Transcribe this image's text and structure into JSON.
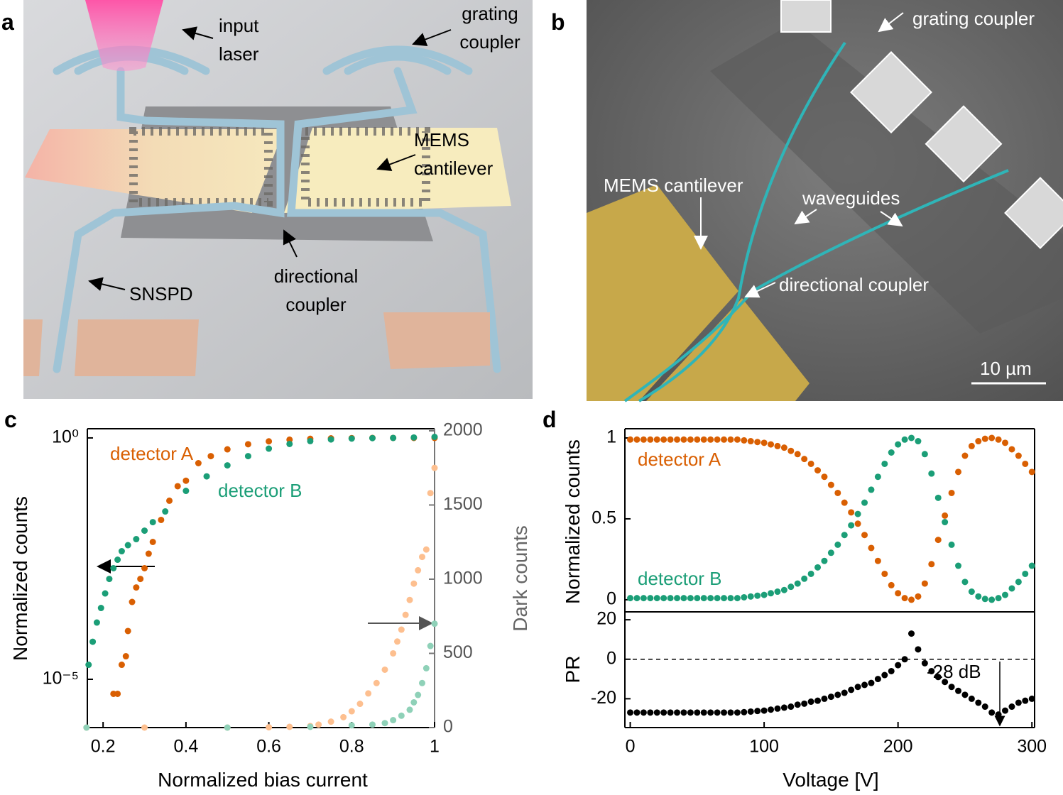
{
  "panels": [
    {
      "label": "a",
      "annotations": [
        [
          "input",
          "laser"
        ],
        [
          "grating",
          "coupler"
        ],
        [
          "MEMS",
          "cantilever"
        ],
        [
          "SNSPD"
        ],
        [
          "directional",
          "coupler"
        ]
      ]
    },
    {
      "label": "b",
      "annotations": [
        [
          "grating coupler"
        ],
        [
          "MEMS cantilever"
        ],
        [
          "waveguides"
        ],
        [
          "directional coupler"
        ],
        [
          "10 µm"
        ]
      ]
    }
  ],
  "chart_data": [
    {
      "type": "scatter",
      "label": "c",
      "xlabel": "Normalized bias current",
      "ylabel": "Normalized counts",
      "y2label": "Dark counts",
      "xlim": [
        0.162,
        1
      ],
      "xticks": [
        0.2,
        0.4,
        0.6,
        0.8,
        1
      ],
      "ylim": [
        1e-06,
        1.55
      ],
      "ylog": true,
      "yticks": [
        {
          "value": 1,
          "label": "10⁰"
        },
        {
          "value": 1e-05,
          "label": "10⁻⁵"
        }
      ],
      "y2lim": [
        0,
        2014
      ],
      "y2ticks": [
        0,
        500,
        1000,
        1500,
        2000
      ],
      "series": [
        {
          "name": "detector A",
          "color": "#d95f02",
          "x": [
            0.225,
            0.235,
            0.245,
            0.255,
            0.26,
            0.27,
            0.28,
            0.29,
            0.3,
            0.31,
            0.32,
            0.34,
            0.36,
            0.38,
            0.4,
            0.43,
            0.46,
            0.5,
            0.55,
            0.6,
            0.65,
            0.7,
            0.75,
            0.8,
            0.85,
            0.9,
            0.95,
            1
          ],
          "values": [
            5e-06,
            5e-06,
            2e-05,
            3e-05,
            0.0001,
            0.0004,
            0.0008,
            0.0012,
            0.002,
            0.004,
            0.007,
            0.02,
            0.05,
            0.1,
            0.13,
            0.3,
            0.42,
            0.58,
            0.74,
            0.85,
            0.92,
            0.96,
            0.98,
            0.99,
            1,
            1,
            1,
            1
          ]
        },
        {
          "name": "detector B",
          "color": "#1b9e77",
          "x": [
            0.165,
            0.175,
            0.185,
            0.195,
            0.205,
            0.215,
            0.225,
            0.235,
            0.245,
            0.26,
            0.28,
            0.3,
            0.32,
            0.35,
            0.4,
            0.45,
            0.5,
            0.55,
            0.6,
            0.65,
            0.7,
            0.75,
            0.8,
            0.85,
            0.9,
            0.95,
            1
          ],
          "values": [
            2e-05,
            6e-05,
            0.00015,
            0.0003,
            0.0006,
            0.0012,
            0.002,
            0.003,
            0.0045,
            0.006,
            0.008,
            0.012,
            0.018,
            0.03,
            0.08,
            0.16,
            0.27,
            0.42,
            0.6,
            0.75,
            0.86,
            0.93,
            0.97,
            0.99,
            1,
            1.02,
            1.05
          ]
        },
        {
          "color": "#fdbf8f",
          "axis": "y2",
          "x": [
            0.16,
            0.3,
            0.5,
            0.6,
            0.65,
            0.7,
            0.72,
            0.75,
            0.78,
            0.8,
            0.82,
            0.84,
            0.86,
            0.88,
            0.9,
            0.91,
            0.92,
            0.93,
            0.94,
            0.95,
            0.96,
            0.97,
            0.98,
            0.99,
            1
          ],
          "values": [
            0,
            0,
            0,
            2,
            5,
            10,
            20,
            40,
            70,
            110,
            160,
            230,
            300,
            390,
            500,
            580,
            660,
            760,
            860,
            970,
            1060,
            1150,
            1200,
            1580,
            1750
          ]
        },
        {
          "color": "#8fd1b8",
          "axis": "y2",
          "x": [
            0.16,
            0.5,
            0.7,
            0.8,
            0.85,
            0.88,
            0.9,
            0.92,
            0.94,
            0.95,
            0.96,
            0.97,
            0.98,
            0.99,
            1
          ],
          "values": [
            0,
            0,
            5,
            15,
            20,
            30,
            50,
            80,
            120,
            170,
            220,
            300,
            400,
            550,
            700
          ]
        }
      ]
    },
    {
      "type": "scatter",
      "label": "d",
      "ylabel": "Normalized counts",
      "xlim": [
        -4,
        302
      ],
      "ylim": [
        -0.075,
        1.057
      ],
      "yticks": [
        0,
        0.5,
        1
      ],
      "x": [
        0,
        5,
        10,
        15,
        20,
        25,
        30,
        35,
        40,
        45,
        50,
        55,
        60,
        65,
        70,
        75,
        80,
        85,
        90,
        95,
        100,
        105,
        110,
        115,
        120,
        125,
        130,
        135,
        140,
        145,
        150,
        155,
        160,
        165,
        170,
        175,
        180,
        185,
        190,
        195,
        200,
        205,
        210,
        215,
        220,
        225,
        230,
        235,
        240,
        245,
        250,
        255,
        260,
        265,
        270,
        275,
        280,
        285,
        290,
        295,
        300
      ],
      "series": [
        {
          "name": "detector A",
          "color": "#d95f02",
          "values": [
            0.99,
            0.99,
            0.99,
            0.99,
            0.99,
            0.99,
            0.99,
            0.99,
            0.99,
            0.99,
            0.99,
            0.99,
            0.99,
            0.99,
            0.99,
            0.99,
            0.99,
            0.985,
            0.98,
            0.975,
            0.97,
            0.96,
            0.95,
            0.94,
            0.92,
            0.9,
            0.87,
            0.84,
            0.8,
            0.76,
            0.71,
            0.66,
            0.6,
            0.54,
            0.47,
            0.4,
            0.32,
            0.24,
            0.16,
            0.09,
            0.04,
            0.01,
            0,
            0.02,
            0.1,
            0.22,
            0.37,
            0.52,
            0.66,
            0.79,
            0.89,
            0.95,
            0.98,
            0.995,
            1,
            0.99,
            0.97,
            0.93,
            0.89,
            0.84,
            0.79
          ]
        },
        {
          "name": "detector B",
          "color": "#1b9e77",
          "values": [
            0.01,
            0.01,
            0.01,
            0.01,
            0.01,
            0.01,
            0.01,
            0.01,
            0.01,
            0.01,
            0.01,
            0.01,
            0.01,
            0.01,
            0.01,
            0.01,
            0.01,
            0.015,
            0.02,
            0.025,
            0.03,
            0.04,
            0.05,
            0.06,
            0.08,
            0.1,
            0.13,
            0.16,
            0.2,
            0.24,
            0.29,
            0.34,
            0.4,
            0.46,
            0.53,
            0.6,
            0.68,
            0.76,
            0.84,
            0.91,
            0.96,
            0.99,
            1,
            0.98,
            0.9,
            0.78,
            0.63,
            0.48,
            0.34,
            0.21,
            0.11,
            0.05,
            0.02,
            0.005,
            0,
            0.01,
            0.03,
            0.07,
            0.11,
            0.16,
            0.21
          ]
        }
      ]
    },
    {
      "type": "scatter",
      "xlabel": "Voltage [V]",
      "ylabel": "PR",
      "annotation": "-28 dB",
      "hline": 0,
      "xlim": [
        -4,
        302
      ],
      "xticks": [
        0,
        100,
        200,
        300
      ],
      "ylim": [
        -34.6,
        24
      ],
      "yticks": [
        -20,
        0,
        20
      ],
      "x": [
        0,
        5,
        10,
        15,
        20,
        25,
        30,
        35,
        40,
        45,
        50,
        55,
        60,
        65,
        70,
        75,
        80,
        85,
        90,
        95,
        100,
        105,
        110,
        115,
        120,
        125,
        130,
        135,
        140,
        145,
        150,
        155,
        160,
        165,
        170,
        175,
        180,
        185,
        190,
        195,
        200,
        205,
        210,
        215,
        220,
        225,
        230,
        235,
        240,
        245,
        250,
        255,
        260,
        265,
        270,
        275,
        280,
        285,
        290,
        295,
        300
      ],
      "series": [
        {
          "color": "#000000",
          "values": [
            -27,
            -27,
            -27,
            -27,
            -27,
            -27,
            -27,
            -27,
            -27,
            -27,
            -27,
            -27,
            -27,
            -27,
            -27,
            -27,
            -27,
            -26.8,
            -26.5,
            -26.2,
            -26,
            -25.5,
            -25,
            -24.5,
            -24,
            -23,
            -22.5,
            -21.5,
            -21,
            -20,
            -19,
            -18,
            -17,
            -15.5,
            -14,
            -13,
            -12,
            -10,
            -8,
            -6,
            -3,
            0,
            13,
            5,
            -2,
            -6,
            -9,
            -11.5,
            -14,
            -16,
            -18,
            -20,
            -22,
            -24,
            -27,
            -28,
            -26,
            -24,
            -22,
            -21,
            -20
          ]
        }
      ]
    }
  ]
}
